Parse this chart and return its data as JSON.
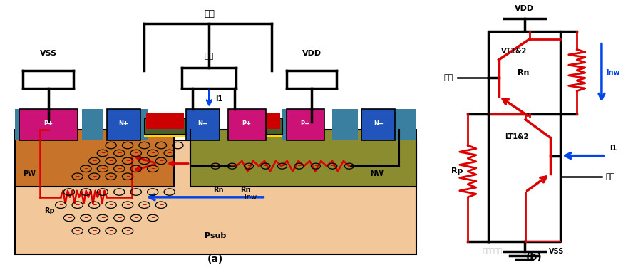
{
  "fig_width": 9.02,
  "fig_height": 3.79,
  "dpi": 100,
  "bg_color": "#ffffff",
  "label_a": "(a)",
  "label_b": "(b)",
  "watermark": "创芜大讲堂",
  "colors": {
    "psub": "#F2C89B",
    "pw": "#C8732A",
    "nw": "#8B8B30",
    "sti": "#3A7FA0",
    "gate_green": "#4A6030",
    "gate_red": "#CC0000",
    "gate_yellow": "#FFD700",
    "pplus": "#CC1177",
    "nplus": "#2255BB",
    "red": "#DD0000",
    "blue": "#0044EE",
    "black": "#000000"
  }
}
